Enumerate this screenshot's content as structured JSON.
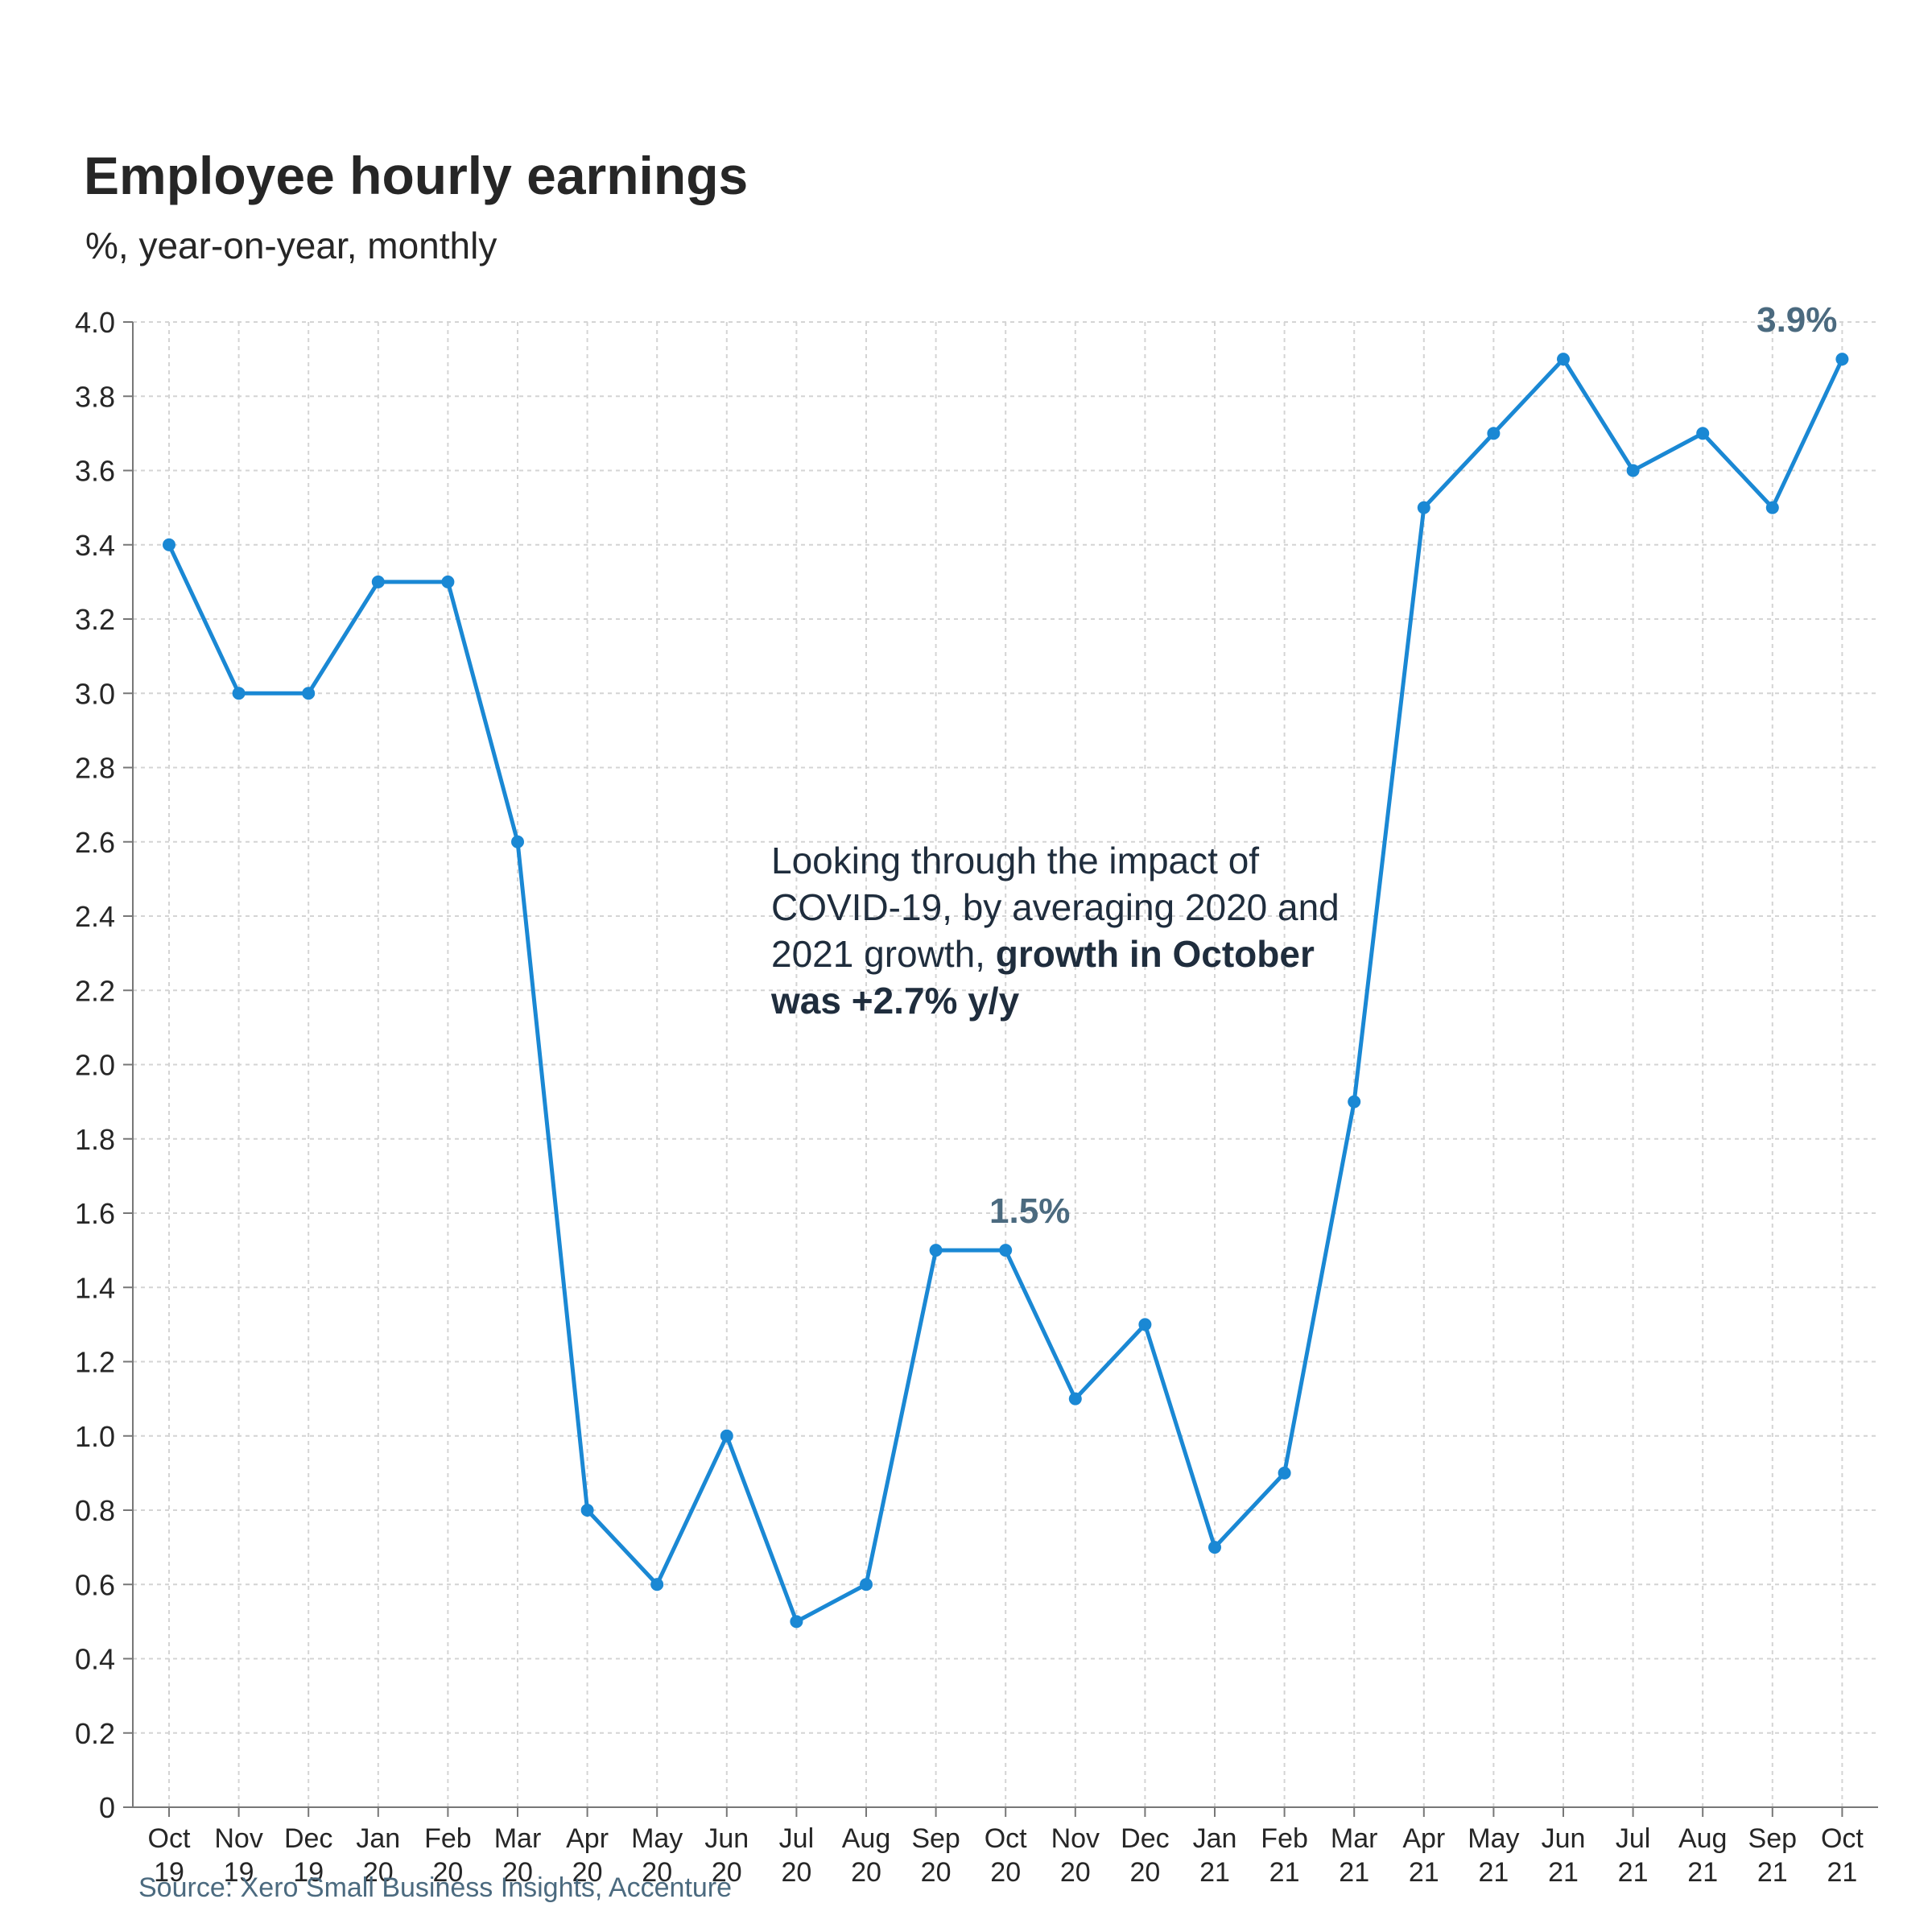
{
  "chart_data": {
    "type": "line",
    "title": "Employee hourly earnings",
    "subtitle": "%, year-on-year, monthly",
    "xlabel": "",
    "ylabel": "",
    "ylim": [
      0,
      4.0
    ],
    "yticks": [
      "0",
      "0.2",
      "0.4",
      "0.6",
      "0.8",
      "1.0",
      "1.2",
      "1.4",
      "1.6",
      "1.8",
      "2.0",
      "2.2",
      "2.4",
      "2.6",
      "2.8",
      "3.0",
      "3.2",
      "3.4",
      "3.6",
      "3.8",
      "4.0"
    ],
    "grid": true,
    "categories": [
      [
        "Oct",
        "19"
      ],
      [
        "Nov",
        "19"
      ],
      [
        "Dec",
        "19"
      ],
      [
        "Jan",
        "20"
      ],
      [
        "Feb",
        "20"
      ],
      [
        "Mar",
        "20"
      ],
      [
        "Apr",
        "20"
      ],
      [
        "May",
        "20"
      ],
      [
        "Jun",
        "20"
      ],
      [
        "Jul",
        "20"
      ],
      [
        "Aug",
        "20"
      ],
      [
        "Sep",
        "20"
      ],
      [
        "Oct",
        "20"
      ],
      [
        "Nov",
        "20"
      ],
      [
        "Dec",
        "20"
      ],
      [
        "Jan",
        "21"
      ],
      [
        "Feb",
        "21"
      ],
      [
        "Mar",
        "21"
      ],
      [
        "Apr",
        "21"
      ],
      [
        "May",
        "21"
      ],
      [
        "Jun",
        "21"
      ],
      [
        "Jul",
        "21"
      ],
      [
        "Aug",
        "21"
      ],
      [
        "Sep",
        "21"
      ],
      [
        "Oct",
        "21"
      ]
    ],
    "series": [
      {
        "values": [
          3.4,
          3.0,
          3.0,
          3.3,
          3.3,
          2.6,
          0.8,
          0.6,
          1.0,
          0.5,
          0.6,
          1.5,
          1.5,
          1.1,
          1.3,
          0.7,
          0.9,
          1.9,
          3.5,
          3.7,
          3.9,
          3.6,
          3.7,
          3.5,
          3.9
        ],
        "color": "#1a88d4"
      }
    ],
    "callouts": [
      {
        "index": 12,
        "text": "1.5%"
      },
      {
        "index": 24,
        "text": "3.9%"
      }
    ],
    "annotation": {
      "normal": "Looking through the impact of COVID-19, by averaging 2020 and 2021 growth, ",
      "bold": "growth in October was +2.7% y/y"
    },
    "source": "Source: Xero Small Business Insights, Accenture"
  }
}
